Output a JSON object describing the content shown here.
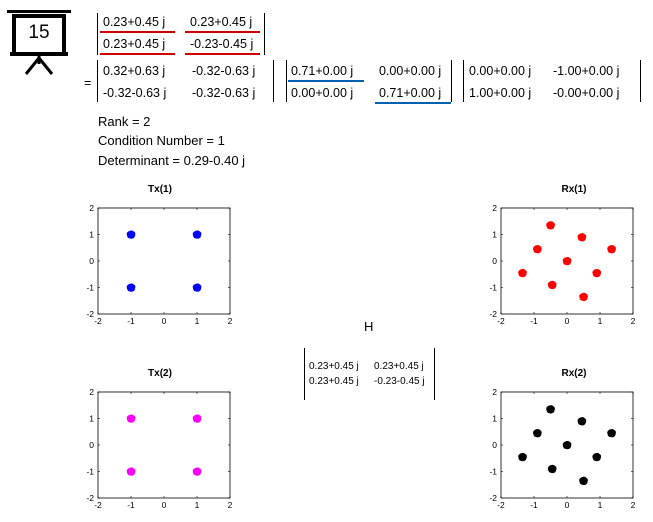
{
  "slide_number": "15",
  "colors": {
    "red": "#cc0000",
    "blue": "#0060b0",
    "tx1": "#0000ff",
    "tx2": "#ff00ff",
    "rx1": "#ff0000",
    "rx2": "#000000"
  },
  "icon": "presentation-board-icon",
  "channel_matrix": [
    [
      "0.23+0.45 j",
      "0.23+0.45 j"
    ],
    [
      "0.23+0.45 j",
      "-0.23-0.45 j"
    ]
  ],
  "equals_sign": "=",
  "U": [
    [
      "0.32+0.63 j",
      "-0.32-0.63 j"
    ],
    [
      "-0.32-0.63 j",
      "-0.32-0.63 j"
    ]
  ],
  "S": [
    [
      "0.71+0.00 j",
      "0.00+0.00 j"
    ],
    [
      "0.00+0.00 j",
      "0.71+0.00 j"
    ]
  ],
  "V": [
    [
      "0.00+0.00 j",
      "-1.00+0.00 j"
    ],
    [
      "1.00+0.00 j",
      "-0.00+0.00 j"
    ]
  ],
  "info": {
    "rank": "Rank = 2",
    "condition": "Condition Number = 1",
    "determinant": "Determinant = 0.29-0.40 j"
  },
  "center_label": "H",
  "small_matrix": [
    [
      "0.23+0.45 j",
      "0.23+0.45 j"
    ],
    [
      "0.23+0.45 j",
      "-0.23-0.45 j"
    ]
  ],
  "chart_data": [
    {
      "type": "scatter",
      "title": "Tx(1)",
      "xlim": [
        -2,
        2
      ],
      "ylim": [
        -2,
        2
      ],
      "ticks": [
        -2,
        -1,
        0,
        1,
        2
      ],
      "color": "#0000ff",
      "points": [
        [
          -1,
          1
        ],
        [
          1,
          1
        ],
        [
          -1,
          -1
        ],
        [
          1,
          -1
        ]
      ]
    },
    {
      "type": "scatter",
      "title": "Rx(1)",
      "xlim": [
        -2,
        2
      ],
      "ylim": [
        -2,
        2
      ],
      "ticks": [
        -2,
        -1,
        0,
        1,
        2
      ],
      "color": "#ff0000",
      "points": [
        [
          -0.5,
          1.35
        ],
        [
          0.45,
          0.9
        ],
        [
          -0.9,
          0.45
        ],
        [
          1.35,
          0.45
        ],
        [
          0,
          0
        ],
        [
          -1.35,
          -0.45
        ],
        [
          0.9,
          -0.45
        ],
        [
          -0.45,
          -0.9
        ],
        [
          0.5,
          -1.35
        ]
      ]
    },
    {
      "type": "scatter",
      "title": "Tx(2)",
      "xlim": [
        -2,
        2
      ],
      "ylim": [
        -2,
        2
      ],
      "ticks": [
        -2,
        -1,
        0,
        1,
        2
      ],
      "color": "#ff00ff",
      "points": [
        [
          -1,
          1
        ],
        [
          1,
          1
        ],
        [
          -1,
          -1
        ],
        [
          1,
          -1
        ]
      ]
    },
    {
      "type": "scatter",
      "title": "Rx(2)",
      "xlim": [
        -2,
        2
      ],
      "ylim": [
        -2,
        2
      ],
      "ticks": [
        -2,
        -1,
        0,
        1,
        2
      ],
      "color": "#000000",
      "points": [
        [
          -0.5,
          1.35
        ],
        [
          0.45,
          0.9
        ],
        [
          -0.9,
          0.45
        ],
        [
          1.35,
          0.45
        ],
        [
          0,
          0
        ],
        [
          -1.35,
          -0.45
        ],
        [
          0.9,
          -0.45
        ],
        [
          -0.45,
          -0.9
        ],
        [
          0.5,
          -1.35
        ]
      ]
    }
  ]
}
